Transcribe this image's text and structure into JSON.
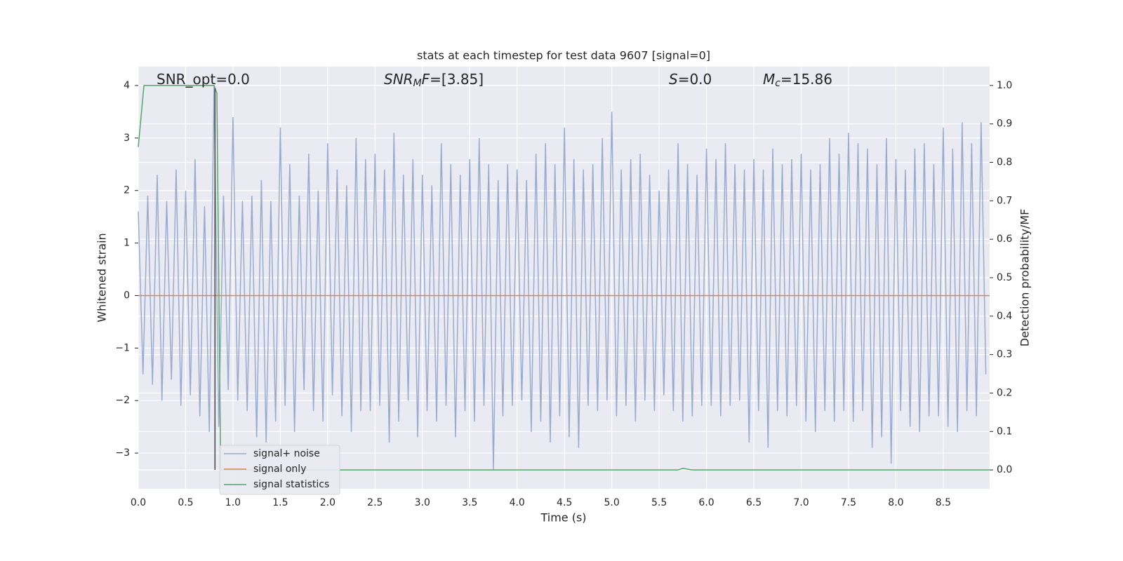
{
  "chart_data": {
    "type": "line",
    "title": "stats at each timestep for test data 9607 [signal=0]",
    "xlabel": "Time (s)",
    "ylabel": "Whitened strain",
    "y2label": "Detection probability/MF",
    "xlim": [
      0,
      8.99
    ],
    "ylim": [
      -3.68,
      4.36
    ],
    "y2lim": [
      -0.049,
      1.049
    ],
    "xticks": [
      {
        "value": 0,
        "label": "0.0"
      },
      0.5,
      {
        "value": 1,
        "label": "1.0"
      },
      1.5,
      {
        "value": 2,
        "label": "2.0"
      },
      2.5,
      {
        "value": 3,
        "label": "3.0"
      },
      3.5,
      {
        "value": 4,
        "label": "4.0"
      },
      4.5,
      {
        "value": 5,
        "label": "5.0"
      },
      5.5,
      {
        "value": 6,
        "label": "6.0"
      },
      6.5,
      {
        "value": 7,
        "label": "7.0"
      },
      7.5,
      {
        "value": 8,
        "label": "8.0"
      },
      8.5
    ],
    "yticks": [
      {
        "value": -3,
        "label": "−3"
      },
      {
        "value": -2,
        "label": "−2"
      },
      {
        "value": -1,
        "label": "−1"
      },
      0,
      1,
      2,
      3,
      4
    ],
    "y2ticks": [
      {
        "value": 0,
        "label": "0.0"
      },
      0.1,
      0.2,
      0.3,
      0.4,
      0.5,
      0.6,
      0.7,
      0.8,
      0.9,
      {
        "value": 1,
        "label": "1.0"
      }
    ],
    "grid": true,
    "legend": "lower left",
    "annotations": [
      [
        {
          "text": "SNR_opt=0.0",
          "style": "normal"
        }
      ],
      [
        {
          "text": "SNR",
          "style": "italic"
        },
        {
          "text": "M",
          "style": "italic-sub"
        },
        {
          "text": "F",
          "style": "italic"
        },
        {
          "text": "=[3.85]",
          "style": "normal"
        }
      ],
      [
        {
          "text": "S",
          "style": "italic"
        },
        {
          "text": "=0.0",
          "style": "normal"
        }
      ],
      [
        {
          "text": "M",
          "style": "italic"
        },
        {
          "text": "c",
          "style": "italic-sub"
        },
        {
          "text": "=15.86",
          "style": "normal"
        }
      ]
    ],
    "vline": {
      "x": 0.81,
      "ymin": -3.32,
      "ymax": 3.95,
      "color": "#444444"
    },
    "series": [
      {
        "name": "signal+ noise",
        "color": "#9aabd0",
        "x": [
          0,
          0.05,
          0.1,
          0.15,
          0.2,
          0.25,
          0.3,
          0.35,
          0.4,
          0.45,
          0.5,
          0.55,
          0.6,
          0.65,
          0.7,
          0.75,
          0.8,
          0.85,
          0.9,
          0.95,
          1,
          1.05,
          1.1,
          1.15,
          1.2,
          1.25,
          1.3,
          1.35,
          1.4,
          1.45,
          1.5,
          1.55,
          1.6,
          1.65,
          1.7,
          1.75,
          1.8,
          1.85,
          1.9,
          1.95,
          2,
          2.05,
          2.1,
          2.15,
          2.2,
          2.25,
          2.3,
          2.35,
          2.4,
          2.45,
          2.5,
          2.55,
          2.6,
          2.65,
          2.7,
          2.75,
          2.8,
          2.85,
          2.9,
          2.95,
          3,
          3.05,
          3.1,
          3.15,
          3.2,
          3.25,
          3.3,
          3.35,
          3.4,
          3.45,
          3.5,
          3.55,
          3.6,
          3.65,
          3.7,
          3.75,
          3.8,
          3.85,
          3.9,
          3.95,
          4,
          4.05,
          4.1,
          4.15,
          4.2,
          4.25,
          4.3,
          4.35,
          4.4,
          4.45,
          4.5,
          4.55,
          4.6,
          4.65,
          4.7,
          4.75,
          4.8,
          4.85,
          4.9,
          4.95,
          5,
          5.05,
          5.1,
          5.15,
          5.2,
          5.25,
          5.3,
          5.35,
          5.4,
          5.45,
          5.5,
          5.55,
          5.6,
          5.65,
          5.7,
          5.75,
          5.8,
          5.85,
          5.9,
          5.95,
          6,
          6.05,
          6.1,
          6.15,
          6.2,
          6.25,
          6.3,
          6.35,
          6.4,
          6.45,
          6.5,
          6.55,
          6.6,
          6.65,
          6.7,
          6.75,
          6.8,
          6.85,
          6.9,
          6.95,
          7,
          7.05,
          7.1,
          7.15,
          7.2,
          7.25,
          7.3,
          7.35,
          7.4,
          7.45,
          7.5,
          7.55,
          7.6,
          7.65,
          7.7,
          7.75,
          7.8,
          7.85,
          7.9,
          7.95,
          8,
          8.05,
          8.1,
          8.15,
          8.2,
          8.25,
          8.3,
          8.35,
          8.4,
          8.45,
          8.5,
          8.55,
          8.6,
          8.65,
          8.7,
          8.75,
          8.8,
          8.85,
          8.9,
          8.95
        ],
        "values": [
          1.6,
          -1.5,
          1.9,
          -1.7,
          2.3,
          -2.0,
          1.8,
          -1.6,
          2.4,
          -2.1,
          2.0,
          -1.9,
          2.6,
          -2.3,
          1.7,
          -2.6,
          3.99,
          -2.5,
          1.9,
          -1.8,
          3.4,
          -2.0,
          1.8,
          -2.2,
          1.9,
          -2.7,
          2.2,
          -2.8,
          1.8,
          -2.4,
          3.2,
          -2.1,
          2.5,
          -2.6,
          1.9,
          -1.8,
          2.7,
          -2.2,
          2.0,
          -2.4,
          2.9,
          -1.9,
          2.4,
          -2.3,
          2.1,
          -2.6,
          3.0,
          -2.2,
          2.6,
          -2.2,
          2.7,
          -2.1,
          2.4,
          -2.8,
          3.1,
          -2.4,
          2.3,
          -2.0,
          2.6,
          -2.7,
          2.3,
          -2.2,
          2.1,
          -2.4,
          2.9,
          -2.1,
          2.5,
          -2.7,
          2.3,
          -2.2,
          2.6,
          -2.4,
          3.0,
          -2.1,
          2.5,
          -3.33,
          2.2,
          -2.3,
          2.5,
          -2.1,
          2.4,
          -2.0,
          2.2,
          -2.6,
          2.7,
          -2.4,
          2.9,
          -2.8,
          2.5,
          -2.3,
          3.2,
          -2.7,
          2.6,
          -2.9,
          2.4,
          -2.1,
          2.5,
          -2.2,
          3.0,
          -2.0,
          3.5,
          -2.3,
          2.4,
          -2.1,
          2.6,
          -2.4,
          2.7,
          -2.0,
          2.3,
          -2.2,
          2.0,
          -1.9,
          2.4,
          -2.2,
          2.9,
          -2.4,
          2.5,
          -2.3,
          2.3,
          -2.1,
          2.8,
          -2.1,
          2.6,
          -2.3,
          2.9,
          -2.1,
          2.5,
          -2.0,
          2.4,
          -2.8,
          2.6,
          -2.2,
          2.4,
          -2.9,
          2.8,
          -2.2,
          2.5,
          -2.3,
          2.6,
          -2.1,
          2.7,
          -2.4,
          2.4,
          -2.6,
          2.5,
          -2.2,
          3.0,
          -2.4,
          2.7,
          -2.2,
          3.1,
          -2.4,
          2.9,
          -2.2,
          2.8,
          -2.9,
          2.5,
          -2.7,
          3.0,
          -3.2,
          2.6,
          -2.2,
          2.4,
          -2.5,
          2.8,
          -2.6,
          2.9,
          -2.3,
          2.5,
          -2.3,
          3.2,
          -2.5,
          2.8,
          -2.6,
          3.3,
          -2.2,
          2.9,
          -2.3,
          3.3,
          -1.5
        ]
      },
      {
        "name": "signal only",
        "color": "#dd8452",
        "x": [
          0,
          8.99
        ],
        "values": [
          0,
          0
        ]
      },
      {
        "name": "signal statistics",
        "color": "#55a868",
        "axis": "y2",
        "x": [
          0,
          0.06,
          0.1,
          0.5,
          0.8,
          0.83,
          0.87,
          1.0,
          4.0,
          5.7,
          5.75,
          5.85,
          8.99
        ],
        "values": [
          0.84,
          1.0,
          1.0,
          1.0,
          1.0,
          0.98,
          0.0,
          0.0,
          0.0,
          0.0,
          0.004,
          0.0,
          0.0
        ]
      }
    ]
  }
}
